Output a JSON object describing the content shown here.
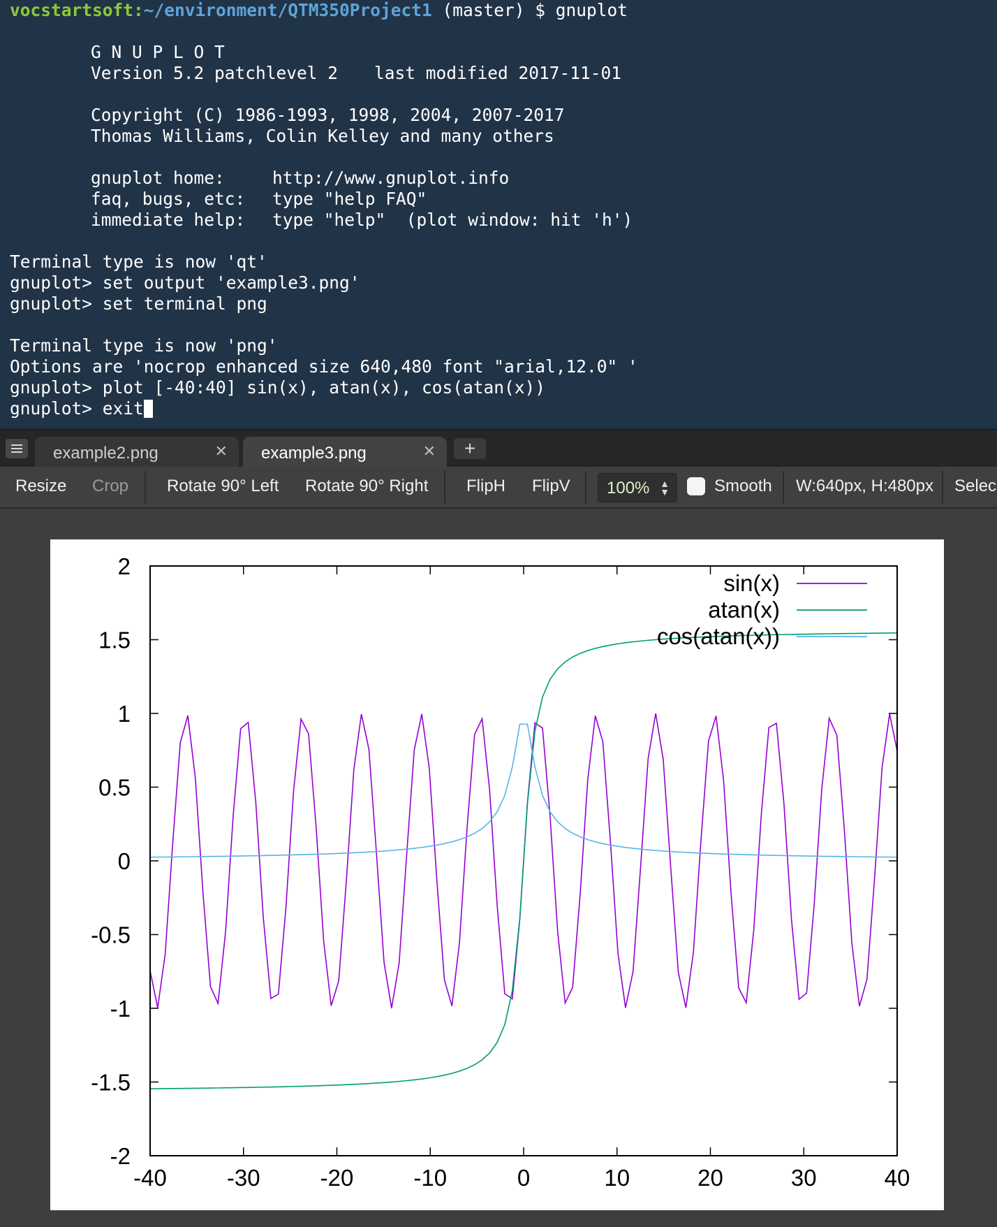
{
  "terminal": {
    "prompt_user": "vocstartsoft",
    "prompt_path": "~/environment/QTM350Project1",
    "prompt_rest": " (master) $ gnuplot",
    "banner_title": "G N U P L O T",
    "version_line": "Version 5.2 patchlevel 2",
    "modified_line": "last modified 2017-11-01",
    "copyright_line": "Copyright (C) 1986-1993, 1998, 2004, 2007-2017",
    "authors_line": "Thomas Williams, Colin Kelley and many others",
    "help_rows": [
      {
        "key": "gnuplot home:",
        "value": "http://www.gnuplot.info"
      },
      {
        "key": "faq, bugs, etc:",
        "value": "type \"help FAQ\""
      },
      {
        "key": "immediate help:",
        "value": "type \"help\"  (plot window: hit 'h')"
      }
    ],
    "lines": [
      "Terminal type is now 'qt'",
      "gnuplot> set output 'example3.png'",
      "gnuplot> set terminal png",
      "Terminal type is now 'png'",
      "Options are 'nocrop enhanced size 640,480 font \"arial,12.0\" '",
      "gnuplot> plot [-40:40] sin(x), atan(x), cos(atan(x))",
      "gnuplot> exit"
    ]
  },
  "tabs": [
    {
      "label": "example2.png",
      "active": false
    },
    {
      "label": "example3.png",
      "active": true
    }
  ],
  "toolbar": {
    "resize": "Resize",
    "crop": "Crop",
    "rotate_left": "Rotate 90° Left",
    "rotate_right": "Rotate 90° Right",
    "fliph": "FlipH",
    "flipv": "FlipV",
    "zoom": "100%",
    "smooth": "Smooth",
    "dimensions": "W:640px, H:480px",
    "select": "Selec"
  },
  "icons": {
    "tab_menu": "list-icon",
    "tab_close": "close-icon",
    "tab_add": "plus-icon",
    "zoom_spin": "up-down-spinner-icon"
  },
  "colors": {
    "terminal_bg": "#213347",
    "prompt_user": "#8fc93a",
    "prompt_path": "#5ea4d8",
    "sin": "#9400d3",
    "atan": "#009e73",
    "cos_atan": "#56b4e9"
  },
  "chart_data": {
    "type": "line",
    "title": "",
    "xlabel": "",
    "ylabel": "",
    "xlim": [
      -40,
      40
    ],
    "ylim": [
      -2,
      2
    ],
    "x_ticks": [
      "-40",
      "-30",
      "-20",
      "-10",
      "0",
      "10",
      "20",
      "30",
      "40"
    ],
    "y_ticks": [
      "2",
      "1.5",
      "1",
      "0.5",
      "0",
      "-0.5",
      "-1",
      "-1.5",
      "-2"
    ],
    "grid": false,
    "legend_position": "top-right",
    "samples": 100,
    "series": [
      {
        "name": "sin(x)",
        "function": "sin(x)",
        "color": "#9400d3"
      },
      {
        "name": "atan(x)",
        "function": "atan(x)",
        "color": "#009e73"
      },
      {
        "name": "cos(atan(x))",
        "function": "cos(atan(x))",
        "color": "#56b4e9"
      }
    ]
  }
}
